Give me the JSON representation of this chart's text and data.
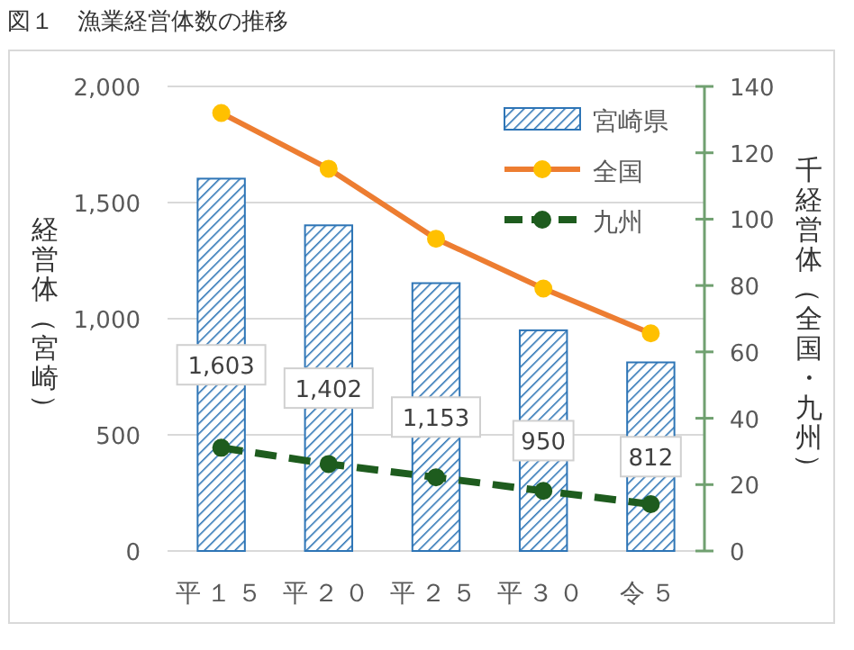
{
  "chart_data": {
    "type": "bar",
    "title": "図１　漁業経営体数の推移",
    "categories": [
      "平１５",
      "平２０",
      "平２５",
      "平３０",
      "令５"
    ],
    "series": [
      {
        "name": "宮崎県",
        "color": "#2e75b6",
        "values": [
          1603,
          1402,
          1153,
          950,
          812
        ],
        "value_labels": [
          "1,603",
          "1,402",
          "1,153",
          "950",
          "812"
        ]
      },
      {
        "name": "全国",
        "type": "line",
        "axis": "y2",
        "color": "#ed7d31",
        "line_style": "solid",
        "values": [
          132.0,
          115.2,
          94.1,
          79.1,
          65.6
        ]
      },
      {
        "name": "九州",
        "type": "line",
        "axis": "y2",
        "color": "#1e5c1e",
        "line_style": "dashed",
        "values": [
          31.1,
          26.2,
          22.2,
          18.1,
          14.1
        ]
      }
    ],
    "ylabel": "経営体（宮崎）",
    "y2label": "千経営体（全国・九州）",
    "ylim": [
      0,
      2000
    ],
    "yticks": [
      0,
      {
        "value": 500,
        "label": "500"
      },
      {
        "value": 1000,
        "label": "1,000"
      },
      {
        "value": 1500,
        "label": "1,500"
      },
      {
        "value": 2000,
        "label": "2,000"
      }
    ],
    "y2lim": [
      0,
      140
    ],
    "y2ticks": [
      0,
      20,
      40,
      60,
      80,
      100,
      120,
      140
    ],
    "marker": "circle",
    "grid": "y",
    "legend": "top right"
  }
}
